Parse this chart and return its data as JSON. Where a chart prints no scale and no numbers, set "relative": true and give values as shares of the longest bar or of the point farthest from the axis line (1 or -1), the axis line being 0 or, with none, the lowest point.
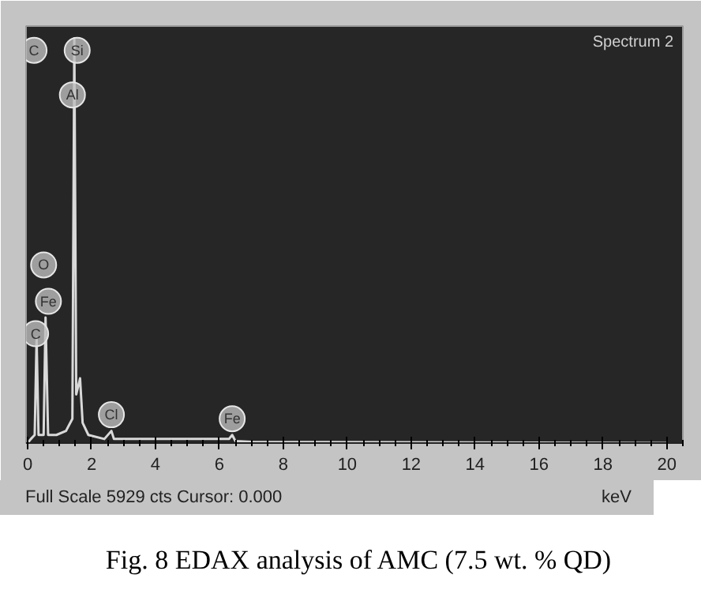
{
  "chart_data": {
    "type": "line",
    "title": "Fig. 8 EDAX analysis of AMC (7.5 wt. % QD)",
    "xlabel": "keV",
    "relative": true,
    "x": [
      0,
      0.1,
      0.22,
      0.28,
      0.34,
      0.5,
      0.56,
      0.64,
      0.9,
      1.2,
      1.4,
      1.46,
      1.52,
      1.64,
      1.72,
      1.9,
      2.4,
      2.62,
      2.7,
      3.5,
      6.3,
      6.4,
      6.5,
      7,
      20
    ],
    "values": [
      0,
      0.01,
      0.02,
      0.26,
      0.02,
      0.02,
      0.31,
      0.02,
      0.02,
      0.03,
      0.06,
      1.0,
      0.12,
      0.16,
      0.05,
      0.02,
      0.01,
      0.03,
      0.01,
      0.01,
      0.01,
      0.02,
      0.005,
      0.003,
      0
    ],
    "color": "#d9d9d9",
    "xlim": [
      -0.05,
      20.5
    ],
    "xticks": [
      0,
      2,
      4,
      6,
      8,
      10,
      12,
      14,
      16,
      18,
      20
    ],
    "grid": false,
    "annotations": [
      {
        "text": "C",
        "x": 0.2,
        "y": 0.97
      },
      {
        "text": "Si",
        "x": 1.55,
        "y": 0.97
      },
      {
        "text": "Al",
        "x": 1.4,
        "y": 0.86
      },
      {
        "text": "O",
        "x": 0.5,
        "y": 0.44
      },
      {
        "text": "Fe",
        "x": 0.65,
        "y": 0.35
      },
      {
        "text": "C",
        "x": 0.25,
        "y": 0.27
      },
      {
        "text": "Cl",
        "x": 2.62,
        "y": 0.07
      },
      {
        "text": "Fe",
        "x": 6.4,
        "y": 0.06
      },
      "Spectrum 2",
      "Full Scale 5929 cts Cursor: 0.000"
    ]
  }
}
